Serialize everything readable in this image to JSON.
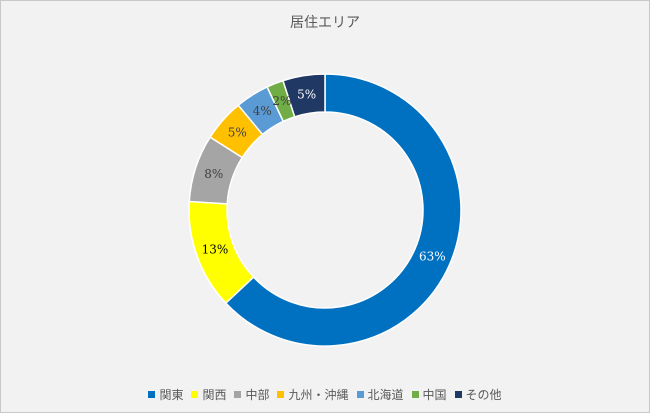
{
  "chart_data": {
    "type": "pie",
    "title": "居住エリア",
    "categories": [
      "関東",
      "関西",
      "中部",
      "九州・沖縄",
      "北海道",
      "中国",
      "その他"
    ],
    "values": [
      63,
      13,
      8,
      5,
      4,
      2,
      5
    ],
    "labels": [
      "63%",
      "13%",
      "8%",
      "5%",
      "4%",
      "2%",
      "5%"
    ],
    "colors": [
      "#0070c0",
      "#ffff00",
      "#a5a5a5",
      "#ffc000",
      "#5b9bd5",
      "#70ad47",
      "#1f3864"
    ],
    "legend": "bottom",
    "donut": true
  }
}
